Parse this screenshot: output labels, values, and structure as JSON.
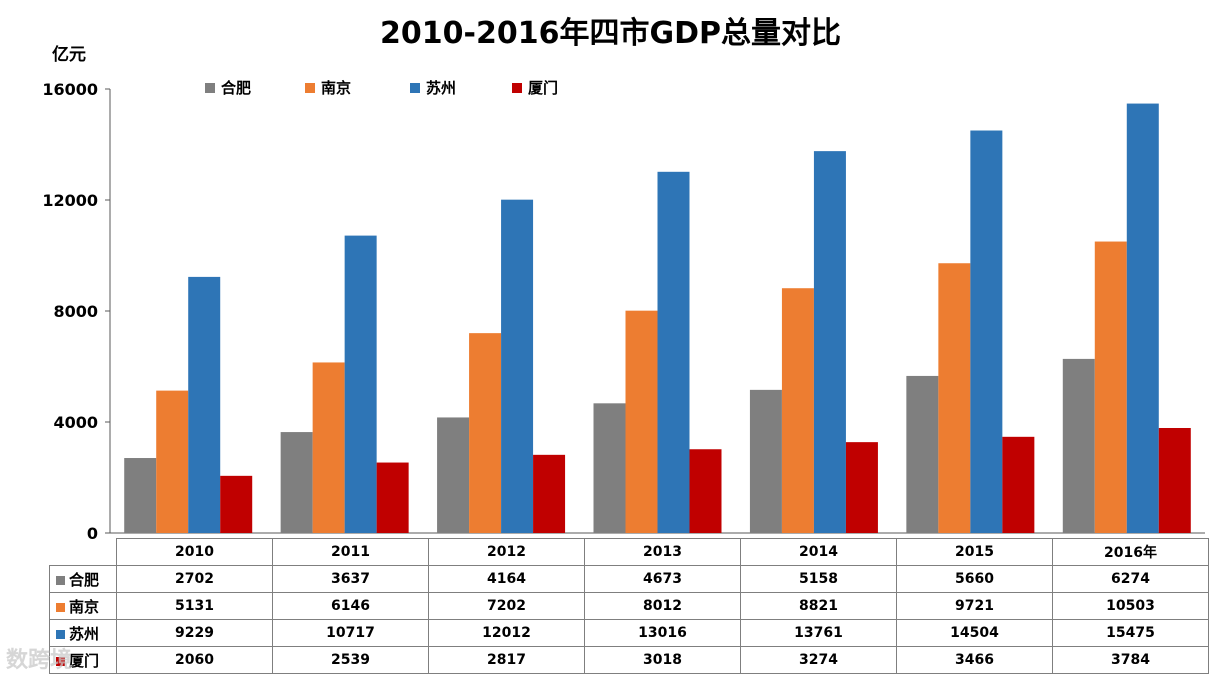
{
  "title": "2010-2016年四市GDP总量对比",
  "unit_label": "亿元",
  "watermark": "数跨境",
  "chart_data": {
    "type": "bar",
    "title": "2010-2016年四市GDP总量对比",
    "ylabel": "亿元",
    "xlabel": "",
    "ylim": [
      0,
      16000
    ],
    "yticks": [
      0,
      4000,
      8000,
      12000,
      16000
    ],
    "grid": false,
    "legend_position": "top",
    "categories": [
      "2010",
      "2011",
      "2012",
      "2013",
      "2014",
      "2015",
      "2016年"
    ],
    "series": [
      {
        "name": "合肥",
        "color": "#7f7f7f",
        "values": [
          2702,
          3637,
          4164,
          4673,
          5158,
          5660,
          6274
        ]
      },
      {
        "name": "南京",
        "color": "#ed7d31",
        "values": [
          5131,
          6146,
          7202,
          8012,
          8821,
          9721,
          10503
        ]
      },
      {
        "name": "苏州",
        "color": "#2e75b6",
        "values": [
          9229,
          10717,
          12012,
          13016,
          13761,
          14504,
          15475
        ]
      },
      {
        "name": "厦门",
        "color": "#c00000",
        "values": [
          2060,
          2539,
          2817,
          3018,
          3274,
          3466,
          3784
        ]
      }
    ]
  }
}
